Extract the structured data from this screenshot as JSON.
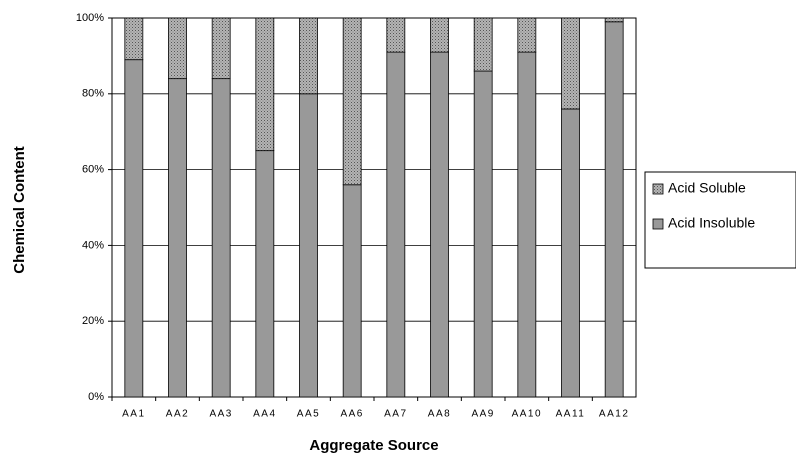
{
  "chart_data": {
    "type": "stacked_bar",
    "x_label": "Aggregate Source",
    "y_label": "Chemical Content",
    "categories": [
      "AA1",
      "AA2",
      "AA3",
      "AA4",
      "AA5",
      "AA6",
      "AA7",
      "AA8",
      "AA9",
      "AA10",
      "AA11",
      "AA12"
    ],
    "series": [
      {
        "name": "Acid Insoluble",
        "color": "#999999",
        "values": [
          89,
          84,
          84,
          65,
          80,
          56,
          91,
          91,
          86,
          91,
          76,
          99
        ]
      },
      {
        "name": "Acid Soluble",
        "color": "#b4b4b4",
        "values": [
          11,
          16,
          16,
          35,
          20,
          44,
          9,
          9,
          14,
          9,
          24,
          1
        ]
      }
    ],
    "ylim": [
      0,
      100
    ],
    "yticks": [
      {
        "value": 0,
        "label": "0%"
      },
      {
        "value": 20,
        "label": "20%"
      },
      {
        "value": 40,
        "label": "40%"
      },
      {
        "value": 60,
        "label": "60%"
      },
      {
        "value": 80,
        "label": "80%"
      },
      {
        "value": 100,
        "label": "100%"
      }
    ],
    "grid": true
  }
}
